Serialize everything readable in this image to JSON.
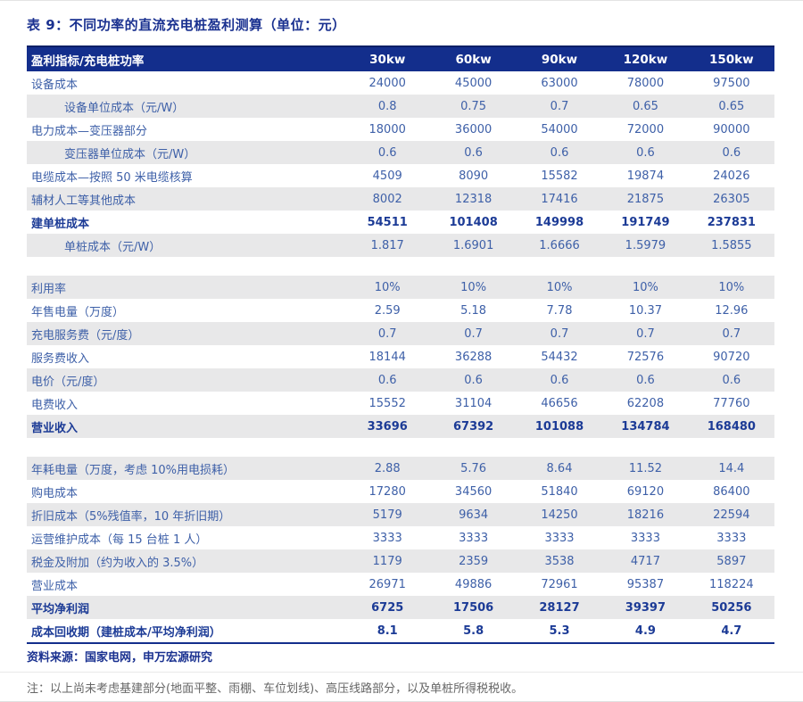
{
  "title": "表 9：不同功率的直流充电桩盈利测算（单位：元）",
  "table": {
    "header": {
      "label": "盈利指标/充电桩功率",
      "columns": [
        "30kw",
        "60kw",
        "90kw",
        "120kw",
        "150kw"
      ]
    },
    "rows": [
      {
        "label": "设备成本",
        "values": [
          "24000",
          "45000",
          "63000",
          "78000",
          "97500"
        ],
        "indent": false,
        "bold": false,
        "shaded": false
      },
      {
        "label": "设备单位成本（元/W）",
        "values": [
          "0.8",
          "0.75",
          "0.7",
          "0.65",
          "0.65"
        ],
        "indent": true,
        "bold": false,
        "shaded": true
      },
      {
        "label": "电力成本—变压器部分",
        "values": [
          "18000",
          "36000",
          "54000",
          "72000",
          "90000"
        ],
        "indent": false,
        "bold": false,
        "shaded": false
      },
      {
        "label": "变压器单位成本（元/W）",
        "values": [
          "0.6",
          "0.6",
          "0.6",
          "0.6",
          "0.6"
        ],
        "indent": true,
        "bold": false,
        "shaded": true
      },
      {
        "label": "电缆成本—按照 50 米电缆核算",
        "values": [
          "4509",
          "8090",
          "15582",
          "19874",
          "24026"
        ],
        "indent": false,
        "bold": false,
        "shaded": false
      },
      {
        "label": "辅材人工等其他成本",
        "values": [
          "8002",
          "12318",
          "17416",
          "21875",
          "26305"
        ],
        "indent": false,
        "bold": false,
        "shaded": true
      },
      {
        "label": "建单桩成本",
        "values": [
          "54511",
          "101408",
          "149998",
          "191749",
          "237831"
        ],
        "indent": false,
        "bold": true,
        "shaded": false
      },
      {
        "label": "单桩成本（元/W）",
        "values": [
          "1.817",
          "1.6901",
          "1.6666",
          "1.5979",
          "1.5855"
        ],
        "indent": true,
        "bold": false,
        "shaded": true
      },
      {
        "gap": true
      },
      {
        "label": "利用率",
        "values": [
          "10%",
          "10%",
          "10%",
          "10%",
          "10%"
        ],
        "indent": false,
        "bold": false,
        "shaded": true
      },
      {
        "label": "年售电量（万度）",
        "values": [
          "2.59",
          "5.18",
          "7.78",
          "10.37",
          "12.96"
        ],
        "indent": false,
        "bold": false,
        "shaded": false
      },
      {
        "label": "充电服务费（元/度）",
        "values": [
          "0.7",
          "0.7",
          "0.7",
          "0.7",
          "0.7"
        ],
        "indent": false,
        "bold": false,
        "shaded": true
      },
      {
        "label": "服务费收入",
        "values": [
          "18144",
          "36288",
          "54432",
          "72576",
          "90720"
        ],
        "indent": false,
        "bold": false,
        "shaded": false
      },
      {
        "label": "电价（元/度）",
        "values": [
          "0.6",
          "0.6",
          "0.6",
          "0.6",
          "0.6"
        ],
        "indent": false,
        "bold": false,
        "shaded": true
      },
      {
        "label": "电费收入",
        "values": [
          "15552",
          "31104",
          "46656",
          "62208",
          "77760"
        ],
        "indent": false,
        "bold": false,
        "shaded": false
      },
      {
        "label": "营业收入",
        "values": [
          "33696",
          "67392",
          "101088",
          "134784",
          "168480"
        ],
        "indent": false,
        "bold": true,
        "shaded": true
      },
      {
        "gap": true
      },
      {
        "label": "年耗电量（万度，考虑 10%用电损耗）",
        "values": [
          "2.88",
          "5.76",
          "8.64",
          "11.52",
          "14.4"
        ],
        "indent": false,
        "bold": false,
        "shaded": true
      },
      {
        "label": "购电成本",
        "values": [
          "17280",
          "34560",
          "51840",
          "69120",
          "86400"
        ],
        "indent": false,
        "bold": false,
        "shaded": false
      },
      {
        "label": "折旧成本（5%残值率，10 年折旧期）",
        "values": [
          "5179",
          "9634",
          "14250",
          "18216",
          "22594"
        ],
        "indent": false,
        "bold": false,
        "shaded": true
      },
      {
        "label": "运营维护成本（每 15 台桩 1 人）",
        "values": [
          "3333",
          "3333",
          "3333",
          "3333",
          "3333"
        ],
        "indent": false,
        "bold": false,
        "shaded": false
      },
      {
        "label": "税金及附加（约为收入的 3.5%）",
        "values": [
          "1179",
          "2359",
          "3538",
          "4717",
          "5897"
        ],
        "indent": false,
        "bold": false,
        "shaded": true
      },
      {
        "label": "营业成本",
        "values": [
          "26971",
          "49886",
          "72961",
          "95387",
          "118224"
        ],
        "indent": false,
        "bold": false,
        "shaded": false
      },
      {
        "label": "平均净利润",
        "values": [
          "6725",
          "17506",
          "28127",
          "39397",
          "50256"
        ],
        "indent": false,
        "bold": true,
        "shaded": true
      },
      {
        "label": "成本回收期（建桩成本/平均净利润）",
        "values": [
          "8.1",
          "5.8",
          "5.3",
          "4.9",
          "4.7"
        ],
        "indent": false,
        "bold": true,
        "shaded": false
      }
    ]
  },
  "footer": {
    "source": "资料来源：国家电网，申万宏源研究",
    "note": "注：以上尚未考虑基建部分(地面平整、雨棚、车位划线)、高压线路部分，以及单桩所得税税收。"
  },
  "colors": {
    "header_bg": "#132e8c",
    "header_border": "#0a1f66",
    "table_bottom_line": "#132e8c",
    "title_color": "#1a3190",
    "row_text": "#3e60a8",
    "bold_text": "#1c3b96",
    "shaded_bg": "#e8e8e9",
    "source_color": "#1a3190",
    "note_color": "#666666"
  }
}
